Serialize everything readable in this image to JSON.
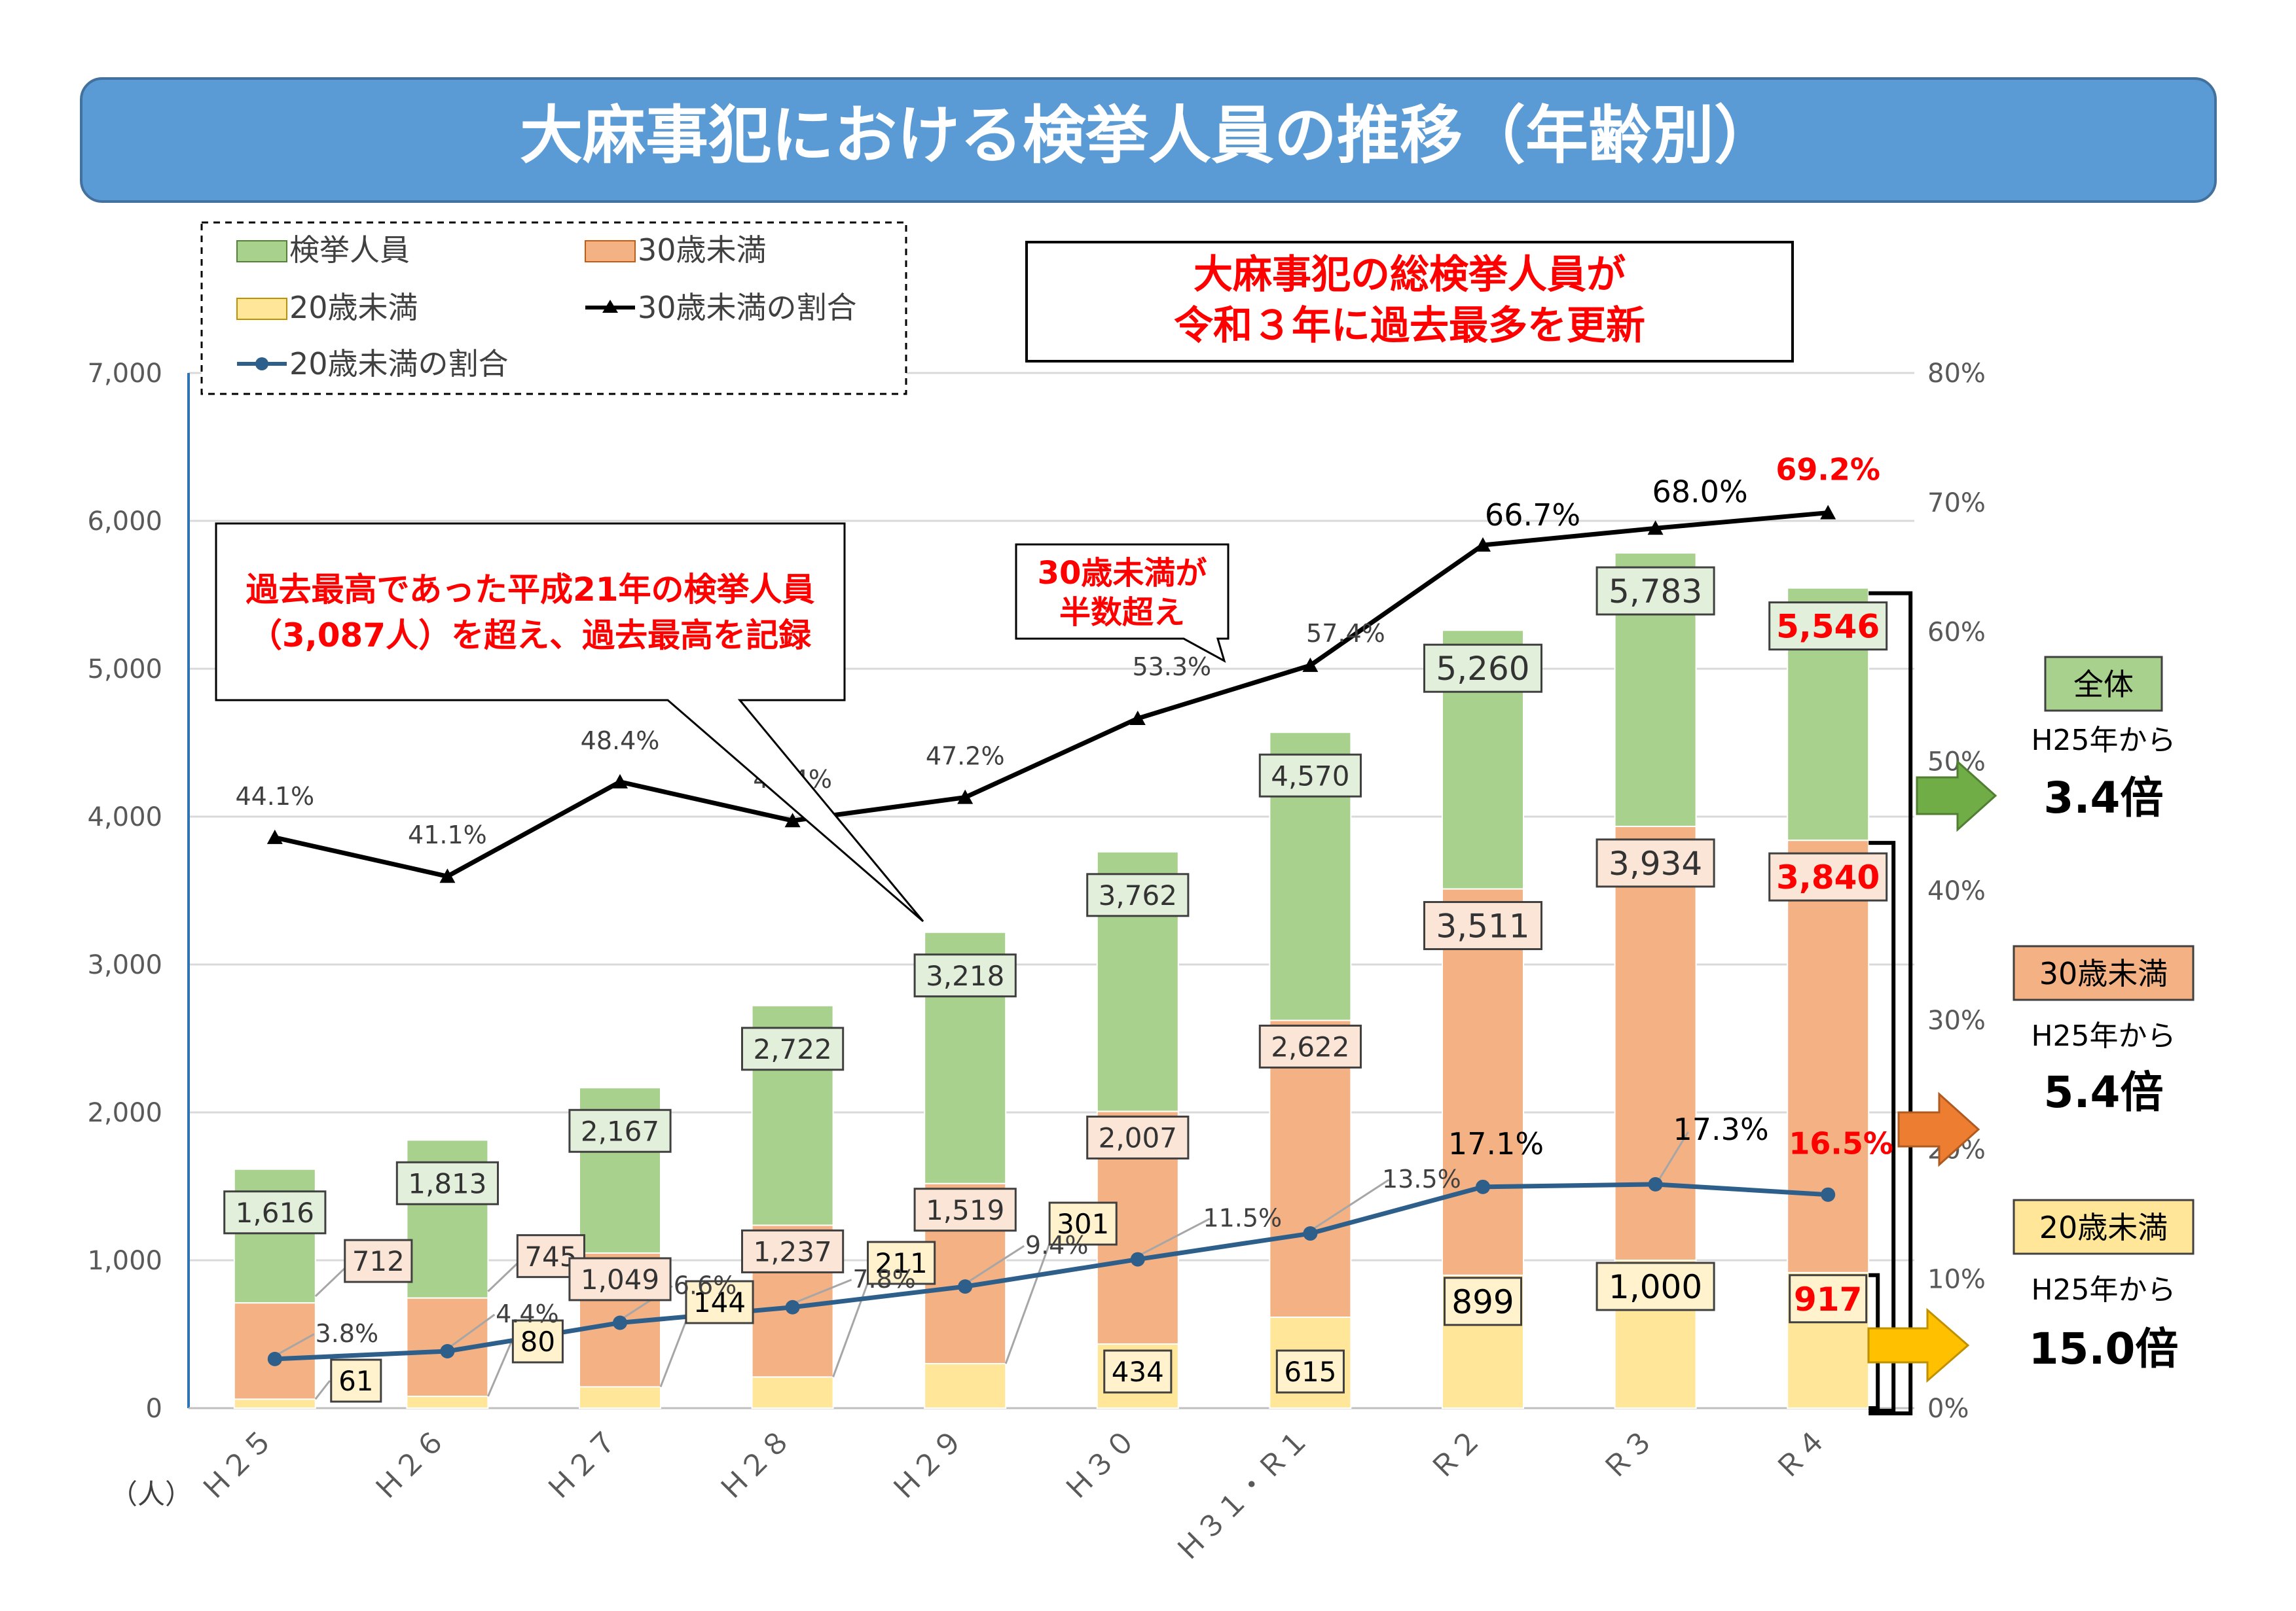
{
  "title": "大麻事犯における検挙人員の推移（年齢別）",
  "y_unit": "（人）",
  "legend": {
    "total": "検挙人員",
    "under30": "30歳未満",
    "under20": "20歳未満",
    "ratio30": "30歳未満の割合",
    "ratio20": "20歳未満の割合"
  },
  "notes": {
    "record_headline_line1": "大麻事犯の総検挙人員が",
    "record_headline_line2": "令和３年に過去最多を更新",
    "past_record_line1": "過去最高であった平成21年の検挙人員",
    "past_record_line2": "（3,087人）を超え、過去最高を記録",
    "half_line1": "30歳未満が",
    "half_line2": "半数超え"
  },
  "growth": [
    {
      "label": "全体",
      "from": "H25年から",
      "value": "3.4倍",
      "color": "#a9d18e",
      "arrow_color": "#70ad47"
    },
    {
      "label": "30歳未満",
      "from": "H25年から",
      "value": "5.4倍",
      "color": "#f4b183",
      "arrow_color": "#ed7d31"
    },
    {
      "label": "20歳未満",
      "from": "H25年から",
      "value": "15.0倍",
      "color": "#ffe699",
      "arrow_color": "#ffc000"
    }
  ],
  "colors": {
    "total": "#a9d18e",
    "under30": "#f4b183",
    "under20": "#ffe699",
    "ratio30": "#000000",
    "ratio20": "#2e5f8a",
    "title_bg": "#5b9bd5",
    "highlight": "#ff0000"
  },
  "chart_data": {
    "type": "bar",
    "stacked": true,
    "categories": [
      "Ｈ２５",
      "Ｈ２６",
      "Ｈ２７",
      "Ｈ２８",
      "Ｈ２９",
      "Ｈ３０",
      "Ｈ３１・Ｒ１",
      "Ｒ２",
      "Ｒ３",
      "Ｒ４"
    ],
    "series": [
      {
        "name": "検挙人員",
        "values": [
          1616,
          1813,
          2167,
          2722,
          3218,
          3762,
          4570,
          5260,
          5783,
          5546
        ],
        "labels": [
          "1,616",
          "1,813",
          "2,167",
          "2,722",
          "3,218",
          "3,762",
          "4,570",
          "5,260",
          "5,783",
          "5,546"
        ]
      },
      {
        "name": "30歳未満",
        "values": [
          712,
          745,
          1049,
          1237,
          1519,
          2007,
          2622,
          3511,
          3934,
          3840
        ],
        "labels": [
          "712",
          "745",
          "1,049",
          "1,237",
          "1,519",
          "2,007",
          "2,622",
          "3,511",
          "3,934",
          "3,840"
        ]
      },
      {
        "name": "20歳未満",
        "values": [
          61,
          80,
          144,
          211,
          301,
          434,
          615,
          899,
          1000,
          917
        ],
        "labels": [
          "61",
          "80",
          "144",
          "211",
          "301",
          "434",
          "615",
          "899",
          "1,000",
          "917"
        ]
      },
      {
        "name": "30歳未満の割合",
        "axis": "right",
        "values": [
          44.1,
          41.1,
          48.4,
          45.4,
          47.2,
          53.3,
          57.4,
          66.7,
          68.0,
          69.2
        ],
        "labels": [
          "44.1%",
          "41.1%",
          "48.4%",
          "45.4%",
          "47.2%",
          "53.3%",
          "57.4%",
          "66.7%",
          "68.0%",
          "69.2%"
        ]
      },
      {
        "name": "20歳未満の割合",
        "axis": "right",
        "values": [
          3.8,
          4.4,
          6.6,
          7.8,
          9.4,
          11.5,
          13.5,
          17.1,
          17.3,
          16.5
        ],
        "labels": [
          "3.8%",
          "4.4%",
          "6.6%",
          "7.8%",
          "9.4%",
          "11.5%",
          "13.5%",
          "17.1%",
          "17.3%",
          "16.5%"
        ]
      }
    ],
    "ylim": [
      0,
      7000
    ],
    "y_ticks": [
      "0",
      "1,000",
      "2,000",
      "3,000",
      "4,000",
      "5,000",
      "6,000",
      "7,000"
    ],
    "y2lim": [
      0,
      80
    ],
    "y2_ticks": [
      "0%",
      "10%",
      "20%",
      "30%",
      "40%",
      "50%",
      "60%",
      "70%",
      "80%"
    ],
    "grid": true,
    "legend_position": "top-left"
  }
}
